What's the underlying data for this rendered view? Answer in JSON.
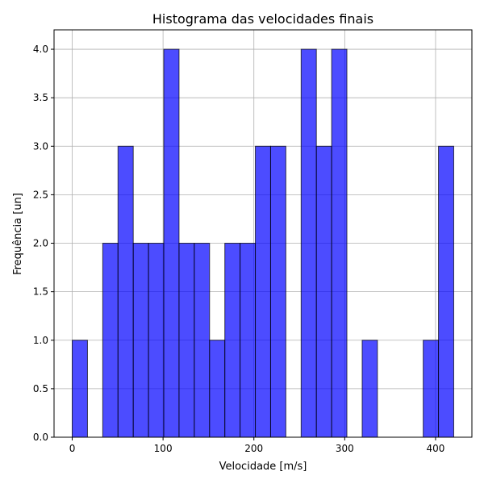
{
  "chart_data": {
    "type": "bar",
    "title": "Histograma das velocidades finais",
    "xlabel": "Velocidade [m/s]",
    "ylabel": "Frequência [un]",
    "bin_edges": [
      0,
      16.8,
      33.6,
      50.4,
      67.2,
      84.0,
      100.8,
      117.6,
      134.4,
      151.2,
      168.0,
      184.8,
      201.6,
      218.4,
      235.2,
      252.0,
      268.8,
      285.6,
      302.4,
      319.2,
      336.0,
      352.8,
      369.6,
      386.4,
      403.2,
      420.0
    ],
    "values": [
      1,
      0,
      2,
      3,
      2,
      2,
      4,
      2,
      2,
      1,
      2,
      2,
      3,
      3,
      0,
      4,
      3,
      4,
      0,
      1,
      0,
      0,
      0,
      1,
      3
    ],
    "xlim": [
      -20,
      440
    ],
    "ylim": [
      0,
      4.2
    ],
    "xticks": [
      "0",
      "100",
      "200",
      "300",
      "400"
    ],
    "yticks": [
      "0.0",
      "0.5",
      "1.0",
      "1.5",
      "2.0",
      "2.5",
      "3.0",
      "3.5",
      "4.0"
    ],
    "grid": true,
    "bar_color": "#0000ff",
    "bar_alpha": 0.7,
    "edge_color": "#000000"
  }
}
